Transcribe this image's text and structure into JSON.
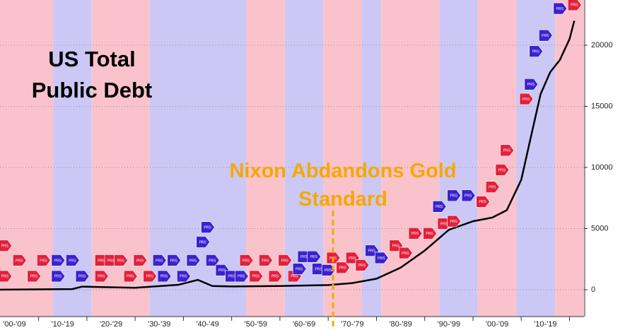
{
  "chart_data": {
    "type": "line",
    "title": "US Total Public Debt",
    "x": [
      1902,
      1917,
      1919,
      1930,
      1939,
      1943,
      1946,
      1950,
      1960,
      1970,
      1975,
      1980,
      1985,
      1990,
      1995,
      2000,
      2004,
      2007,
      2010,
      2012,
      2014,
      2016,
      2018,
      2020,
      2021
    ],
    "values": [
      0,
      50,
      250,
      160,
      400,
      800,
      300,
      260,
      300,
      380,
      540,
      900,
      1800,
      3200,
      4900,
      5600,
      5900,
      6500,
      9000,
      12500,
      16000,
      17800,
      18800,
      20500,
      22000
    ],
    "color": "#000000",
    "xlim": [
      1902,
      2023
    ],
    "ylim": [
      -2200,
      23700
    ],
    "yticks": [
      0,
      5000,
      10000,
      15000,
      20000
    ],
    "xticks": [
      {
        "value": 1905,
        "label": "'00-'09"
      },
      {
        "value": 1915,
        "label": "'10-'19"
      },
      {
        "value": 1925,
        "label": "'20-'29"
      },
      {
        "value": 1935,
        "label": "'30-'39"
      },
      {
        "value": 1945,
        "label": "'40-'49"
      },
      {
        "value": 1955,
        "label": "'50-'59"
      },
      {
        "value": 1965,
        "label": "'60-'69"
      },
      {
        "value": 1975,
        "label": "'70-'79"
      },
      {
        "value": 1985,
        "label": "'80-'89"
      },
      {
        "value": 1995,
        "label": "'90-'99"
      },
      {
        "value": 2005,
        "label": "'00-'09"
      },
      {
        "value": 2015,
        "label": "'10-'19"
      }
    ],
    "grid": true,
    "bands": [
      {
        "start": 1901,
        "end": 1913,
        "color": "#fac3cb"
      },
      {
        "start": 1913,
        "end": 1921,
        "color": "#cbc8f6"
      },
      {
        "start": 1921,
        "end": 1933,
        "color": "#fac3cb"
      },
      {
        "start": 1933,
        "end": 1953,
        "color": "#cbc8f6"
      },
      {
        "start": 1953,
        "end": 1961,
        "color": "#fac3cb"
      },
      {
        "start": 1961,
        "end": 1969,
        "color": "#cbc8f6"
      },
      {
        "start": 1969,
        "end": 1977,
        "color": "#fac3cb"
      },
      {
        "start": 1977,
        "end": 1981,
        "color": "#cbc8f6"
      },
      {
        "start": 1981,
        "end": 1993,
        "color": "#fac3cb"
      },
      {
        "start": 1993,
        "end": 2001,
        "color": "#cbc8f6"
      },
      {
        "start": 2001,
        "end": 2009,
        "color": "#fac3cb"
      },
      {
        "start": 2009,
        "end": 2017,
        "color": "#cbc8f6"
      },
      {
        "start": 2017,
        "end": 2023,
        "color": "#fac3cb"
      }
    ],
    "marker_label": "PRS",
    "marker_series": [
      {
        "color": "#e3203c",
        "x": [
          1903,
          1903,
          1906,
          1909,
          1911,
          1923,
          1923,
          1925,
          1927,
          1929,
          1931,
          1933,
          1953,
          1955,
          1957,
          1959,
          1961,
          1963,
          1971,
          1973,
          1975,
          1977,
          1984,
          1986,
          1988,
          1991,
          1994,
          1996,
          2002,
          2004,
          2006,
          2007,
          2011,
          2021
        ],
        "values": [
          1100,
          3600,
          2400,
          1100,
          2400,
          2400,
          1100,
          2400,
          2400,
          1100,
          2400,
          1100,
          2400,
          1100,
          2400,
          1100,
          2400,
          1100,
          2600,
          1800,
          2600,
          2000,
          3600,
          3000,
          4600,
          4600,
          5400,
          5600,
          7200,
          8400,
          9800,
          11400,
          15600,
          23300
        ]
      },
      {
        "color": "#3b22cf",
        "x": [
          1914,
          1914,
          1917,
          1919,
          1935,
          1936,
          1938,
          1940,
          1942,
          1944,
          1945,
          1946,
          1948,
          1950,
          1952,
          1964,
          1965,
          1967,
          1968,
          1970,
          1979,
          1981,
          1993,
          1996,
          1999,
          2012,
          2013,
          2015,
          2018
        ],
        "values": [
          2400,
          1100,
          2400,
          1100,
          2400,
          1100,
          2400,
          1100,
          2400,
          3900,
          5100,
          2400,
          1600,
          1100,
          1100,
          1700,
          2700,
          2700,
          1700,
          1600,
          3200,
          2600,
          6800,
          7700,
          7700,
          16800,
          19500,
          20800,
          23000
        ]
      }
    ],
    "annotation": {
      "text": "Nixon Abdandons Gold Standard",
      "x": 1971,
      "color": "#f5a800"
    }
  }
}
